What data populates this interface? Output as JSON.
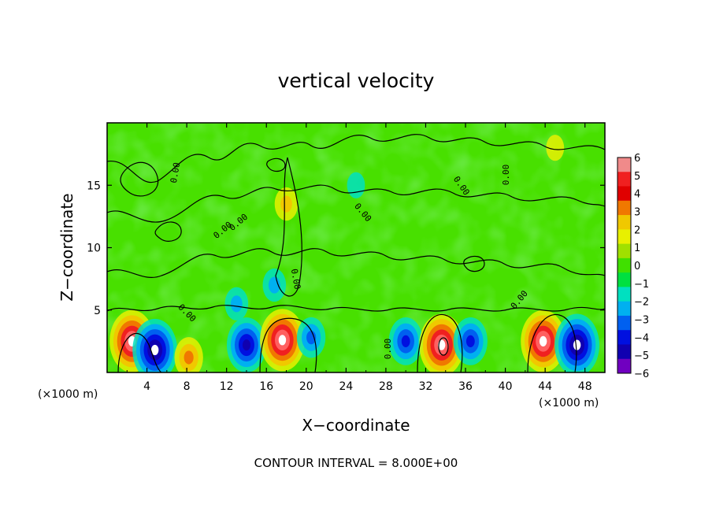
{
  "chart_data": {
    "type": "heatmap",
    "title": "vertical velocity",
    "xlabel": "X−coordinate",
    "ylabel": "Z−coordinate",
    "x_unit": "(×1000 m)",
    "z_unit": "(×1000 m)",
    "xlim": [
      0,
      50
    ],
    "ylim": [
      0,
      20
    ],
    "x_ticks": [
      4,
      8,
      12,
      16,
      20,
      24,
      28,
      32,
      36,
      40,
      44,
      48
    ],
    "y_ticks": [
      5,
      10,
      15
    ],
    "colorbar": {
      "ticks": [
        "6",
        "5",
        "4",
        "3",
        "2",
        "1",
        "0",
        "−1",
        "−2",
        "−3",
        "−4",
        "−5",
        "−6"
      ],
      "colors": [
        "#f08a8a",
        "#f02020",
        "#e00000",
        "#f07800",
        "#f0c800",
        "#e8f000",
        "#a0e000",
        "#40e000",
        "#00e040",
        "#00e0c0",
        "#00b0f0",
        "#0060f0",
        "#0010e0",
        "#1000b0",
        "#7000c0"
      ]
    },
    "contour_label": "0.00",
    "cells": [
      {
        "x": 2.5,
        "z": 2.5,
        "w": 6
      },
      {
        "x": 4.8,
        "z": 1.8,
        "w": -6
      },
      {
        "x": 8.2,
        "z": 1.2,
        "w": 3
      },
      {
        "x": 14.0,
        "z": 2.2,
        "w": -5
      },
      {
        "x": 17.6,
        "z": 2.6,
        "w": 6
      },
      {
        "x": 20.5,
        "z": 2.8,
        "w": -3
      },
      {
        "x": 30.0,
        "z": 2.5,
        "w": -4
      },
      {
        "x": 33.6,
        "z": 2.2,
        "w": 6
      },
      {
        "x": 36.5,
        "z": 2.5,
        "w": -4
      },
      {
        "x": 43.8,
        "z": 2.5,
        "w": 6
      },
      {
        "x": 47.2,
        "z": 2.2,
        "w": -6
      },
      {
        "x": 18.0,
        "z": 13.5,
        "w": 2
      },
      {
        "x": 16.8,
        "z": 7.0,
        "w": -2
      },
      {
        "x": 13.0,
        "z": 5.5,
        "w": -2
      },
      {
        "x": 25.0,
        "z": 15.0,
        "w": -1
      },
      {
        "x": 45.0,
        "z": 18.0,
        "w": 1
      }
    ],
    "contour_interval_label": "CONTOUR INTERVAL = 8.000E+00"
  }
}
